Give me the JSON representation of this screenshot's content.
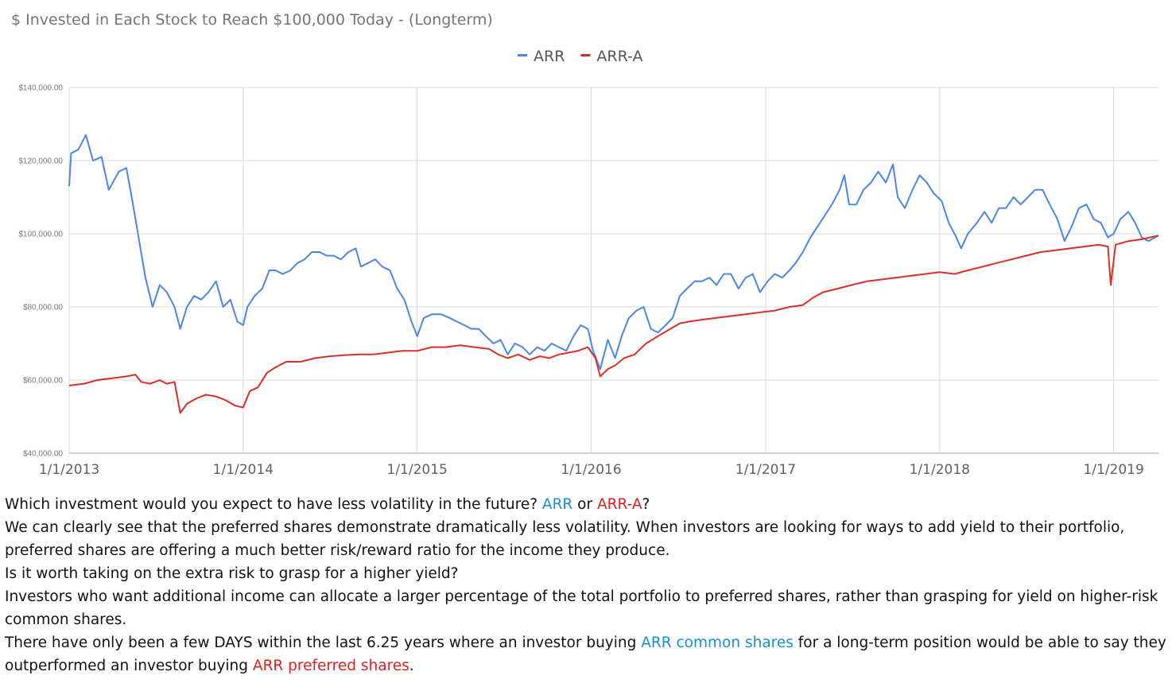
{
  "chart_data": {
    "type": "line",
    "title": "$ Invested in Each Stock to Reach $100,000 Today - (Longterm)",
    "xlabel": "",
    "ylabel": "",
    "ylim": [
      40000,
      140000
    ],
    "xlim": [
      "2013-01-01",
      "2019-04-05"
    ],
    "y_ticks": [
      "$140,000.00",
      "$120,000.00",
      "$100,000.00",
      "$80,000.00",
      "$60,000.00",
      "$40,000.00"
    ],
    "y_tick_values": [
      140000,
      120000,
      100000,
      80000,
      60000,
      40000
    ],
    "x_ticks": [
      "1/1/2013",
      "1/1/2014",
      "1/1/2015",
      "1/1/2016",
      "1/1/2017",
      "1/1/2018",
      "1/1/2019"
    ],
    "x_tick_dates": [
      "2013-01-01",
      "2014-01-01",
      "2015-01-01",
      "2016-01-01",
      "2017-01-01",
      "2018-01-01",
      "2019-01-01"
    ],
    "grid": true,
    "legend_position": "top",
    "series": [
      {
        "name": "ARR",
        "color": "#4a86e8",
        "points": [
          [
            "2013-01-01",
            113000
          ],
          [
            "2013-01-05",
            122000
          ],
          [
            "2013-01-20",
            123000
          ],
          [
            "2013-02-05",
            127000
          ],
          [
            "2013-02-20",
            120000
          ],
          [
            "2013-03-10",
            121000
          ],
          [
            "2013-03-25",
            112000
          ],
          [
            "2013-04-15",
            117000
          ],
          [
            "2013-05-01",
            118000
          ],
          [
            "2013-05-15",
            108000
          ],
          [
            "2013-05-28",
            98000
          ],
          [
            "2013-06-10",
            88000
          ],
          [
            "2013-06-25",
            80000
          ],
          [
            "2013-07-10",
            86000
          ],
          [
            "2013-07-25",
            84000
          ],
          [
            "2013-08-10",
            80000
          ],
          [
            "2013-08-22",
            74000
          ],
          [
            "2013-09-05",
            80000
          ],
          [
            "2013-09-20",
            83000
          ],
          [
            "2013-10-05",
            82000
          ],
          [
            "2013-10-20",
            84000
          ],
          [
            "2013-11-05",
            87000
          ],
          [
            "2013-11-20",
            80000
          ],
          [
            "2013-12-05",
            82000
          ],
          [
            "2013-12-20",
            76000
          ],
          [
            "2014-01-01",
            75000
          ],
          [
            "2014-01-10",
            80000
          ],
          [
            "2014-01-25",
            83000
          ],
          [
            "2014-02-10",
            85000
          ],
          [
            "2014-02-25",
            90000
          ],
          [
            "2014-03-10",
            90000
          ],
          [
            "2014-03-25",
            89000
          ],
          [
            "2014-04-10",
            90000
          ],
          [
            "2014-04-25",
            92000
          ],
          [
            "2014-05-10",
            93000
          ],
          [
            "2014-05-25",
            95000
          ],
          [
            "2014-06-10",
            95000
          ],
          [
            "2014-06-25",
            94000
          ],
          [
            "2014-07-10",
            94000
          ],
          [
            "2014-07-25",
            93000
          ],
          [
            "2014-08-10",
            95000
          ],
          [
            "2014-08-25",
            96000
          ],
          [
            "2014-09-05",
            91000
          ],
          [
            "2014-09-20",
            92000
          ],
          [
            "2014-10-05",
            93000
          ],
          [
            "2014-10-20",
            91000
          ],
          [
            "2014-11-05",
            90000
          ],
          [
            "2014-11-20",
            85000
          ],
          [
            "2014-12-05",
            82000
          ],
          [
            "2014-12-20",
            76000
          ],
          [
            "2015-01-01",
            72000
          ],
          [
            "2015-01-15",
            77000
          ],
          [
            "2015-02-01",
            78000
          ],
          [
            "2015-02-20",
            78000
          ],
          [
            "2015-03-10",
            77000
          ],
          [
            "2015-03-25",
            76000
          ],
          [
            "2015-04-10",
            75000
          ],
          [
            "2015-04-25",
            74000
          ],
          [
            "2015-05-10",
            74000
          ],
          [
            "2015-05-25",
            72000
          ],
          [
            "2015-06-10",
            70000
          ],
          [
            "2015-06-25",
            71000
          ],
          [
            "2015-07-10",
            67000
          ],
          [
            "2015-07-25",
            70000
          ],
          [
            "2015-08-10",
            69000
          ],
          [
            "2015-08-25",
            67000
          ],
          [
            "2015-09-10",
            69000
          ],
          [
            "2015-09-25",
            68000
          ],
          [
            "2015-10-10",
            70000
          ],
          [
            "2015-10-25",
            69000
          ],
          [
            "2015-11-10",
            68000
          ],
          [
            "2015-11-25",
            72000
          ],
          [
            "2015-12-10",
            75000
          ],
          [
            "2015-12-25",
            74000
          ],
          [
            "2016-01-05",
            68000
          ],
          [
            "2016-01-20",
            63000
          ],
          [
            "2016-02-05",
            71000
          ],
          [
            "2016-02-20",
            66000
          ],
          [
            "2016-03-05",
            72000
          ],
          [
            "2016-03-20",
            77000
          ],
          [
            "2016-04-05",
            79000
          ],
          [
            "2016-04-20",
            80000
          ],
          [
            "2016-05-05",
            74000
          ],
          [
            "2016-05-20",
            73000
          ],
          [
            "2016-06-05",
            75000
          ],
          [
            "2016-06-20",
            77000
          ],
          [
            "2016-07-05",
            83000
          ],
          [
            "2016-07-20",
            85000
          ],
          [
            "2016-08-05",
            87000
          ],
          [
            "2016-08-20",
            87000
          ],
          [
            "2016-09-05",
            88000
          ],
          [
            "2016-09-20",
            86000
          ],
          [
            "2016-10-05",
            89000
          ],
          [
            "2016-10-20",
            89000
          ],
          [
            "2016-11-05",
            85000
          ],
          [
            "2016-11-20",
            88000
          ],
          [
            "2016-12-05",
            89000
          ],
          [
            "2016-12-20",
            84000
          ],
          [
            "2017-01-05",
            87000
          ],
          [
            "2017-01-20",
            89000
          ],
          [
            "2017-02-05",
            88000
          ],
          [
            "2017-02-20",
            90000
          ],
          [
            "2017-03-05",
            92000
          ],
          [
            "2017-03-20",
            95000
          ],
          [
            "2017-04-05",
            99000
          ],
          [
            "2017-04-20",
            102000
          ],
          [
            "2017-05-05",
            105000
          ],
          [
            "2017-05-20",
            108000
          ],
          [
            "2017-06-05",
            112000
          ],
          [
            "2017-06-15",
            116000
          ],
          [
            "2017-06-25",
            108000
          ],
          [
            "2017-07-10",
            108000
          ],
          [
            "2017-07-25",
            112000
          ],
          [
            "2017-08-10",
            114000
          ],
          [
            "2017-08-25",
            117000
          ],
          [
            "2017-09-10",
            114000
          ],
          [
            "2017-09-25",
            119000
          ],
          [
            "2017-10-05",
            110000
          ],
          [
            "2017-10-20",
            107000
          ],
          [
            "2017-11-05",
            112000
          ],
          [
            "2017-11-20",
            116000
          ],
          [
            "2017-12-05",
            114000
          ],
          [
            "2017-12-20",
            111000
          ],
          [
            "2018-01-05",
            109000
          ],
          [
            "2018-01-20",
            103000
          ],
          [
            "2018-02-05",
            99000
          ],
          [
            "2018-02-15",
            96000
          ],
          [
            "2018-03-01",
            100000
          ],
          [
            "2018-03-20",
            103000
          ],
          [
            "2018-04-05",
            106000
          ],
          [
            "2018-04-20",
            103000
          ],
          [
            "2018-05-05",
            107000
          ],
          [
            "2018-05-20",
            107000
          ],
          [
            "2018-06-05",
            110000
          ],
          [
            "2018-06-20",
            108000
          ],
          [
            "2018-07-05",
            110000
          ],
          [
            "2018-07-20",
            112000
          ],
          [
            "2018-08-05",
            112000
          ],
          [
            "2018-08-20",
            108000
          ],
          [
            "2018-09-05",
            104000
          ],
          [
            "2018-09-20",
            98000
          ],
          [
            "2018-10-05",
            102000
          ],
          [
            "2018-10-20",
            107000
          ],
          [
            "2018-11-05",
            108000
          ],
          [
            "2018-11-20",
            104000
          ],
          [
            "2018-12-05",
            103000
          ],
          [
            "2018-12-20",
            99000
          ],
          [
            "2019-01-01",
            100000
          ],
          [
            "2019-01-15",
            104000
          ],
          [
            "2019-02-01",
            106000
          ],
          [
            "2019-02-15",
            103000
          ],
          [
            "2019-03-01",
            99000
          ],
          [
            "2019-03-15",
            98000
          ],
          [
            "2019-04-05",
            99500
          ]
        ]
      },
      {
        "name": "ARR-A",
        "color": "#d93025",
        "points": [
          [
            "2013-01-01",
            58500
          ],
          [
            "2013-02-01",
            59000
          ],
          [
            "2013-03-01",
            60000
          ],
          [
            "2013-04-01",
            60500
          ],
          [
            "2013-05-01",
            61000
          ],
          [
            "2013-05-20",
            61500
          ],
          [
            "2013-06-01",
            59500
          ],
          [
            "2013-06-20",
            59000
          ],
          [
            "2013-07-10",
            60000
          ],
          [
            "2013-07-25",
            59000
          ],
          [
            "2013-08-10",
            59500
          ],
          [
            "2013-08-22",
            51000
          ],
          [
            "2013-09-05",
            53500
          ],
          [
            "2013-09-25",
            55000
          ],
          [
            "2013-10-15",
            56000
          ],
          [
            "2013-11-05",
            55500
          ],
          [
            "2013-11-25",
            54500
          ],
          [
            "2013-12-15",
            53000
          ],
          [
            "2014-01-01",
            52500
          ],
          [
            "2014-01-15",
            57000
          ],
          [
            "2014-02-01",
            58000
          ],
          [
            "2014-02-20",
            62000
          ],
          [
            "2014-03-10",
            63500
          ],
          [
            "2014-04-01",
            65000
          ],
          [
            "2014-05-01",
            65000
          ],
          [
            "2014-06-01",
            66000
          ],
          [
            "2014-07-01",
            66500
          ],
          [
            "2014-08-01",
            66800
          ],
          [
            "2014-09-01",
            67000
          ],
          [
            "2014-10-01",
            67000
          ],
          [
            "2014-11-01",
            67500
          ],
          [
            "2014-12-01",
            68000
          ],
          [
            "2015-01-01",
            68000
          ],
          [
            "2015-02-01",
            69000
          ],
          [
            "2015-03-01",
            69000
          ],
          [
            "2015-04-01",
            69500
          ],
          [
            "2015-05-01",
            69000
          ],
          [
            "2015-06-01",
            68500
          ],
          [
            "2015-06-20",
            67000
          ],
          [
            "2015-07-10",
            66000
          ],
          [
            "2015-08-01",
            67000
          ],
          [
            "2015-08-25",
            65500
          ],
          [
            "2015-09-15",
            66500
          ],
          [
            "2015-10-05",
            66000
          ],
          [
            "2015-10-25",
            67000
          ],
          [
            "2015-11-15",
            67500
          ],
          [
            "2015-12-05",
            68000
          ],
          [
            "2015-12-25",
            69000
          ],
          [
            "2016-01-10",
            66000
          ],
          [
            "2016-01-20",
            61000
          ],
          [
            "2016-02-05",
            63000
          ],
          [
            "2016-02-20",
            64000
          ],
          [
            "2016-03-10",
            66000
          ],
          [
            "2016-04-01",
            67000
          ],
          [
            "2016-04-25",
            70000
          ],
          [
            "2016-05-20",
            72000
          ],
          [
            "2016-06-15",
            74000
          ],
          [
            "2016-07-05",
            75500
          ],
          [
            "2016-07-25",
            76000
          ],
          [
            "2016-08-20",
            76500
          ],
          [
            "2016-09-20",
            77000
          ],
          [
            "2016-10-20",
            77500
          ],
          [
            "2016-11-20",
            78000
          ],
          [
            "2016-12-20",
            78500
          ],
          [
            "2017-01-20",
            79000
          ],
          [
            "2017-02-20",
            80000
          ],
          [
            "2017-03-20",
            80500
          ],
          [
            "2017-04-10",
            82500
          ],
          [
            "2017-05-01",
            84000
          ],
          [
            "2017-06-01",
            85000
          ],
          [
            "2017-07-01",
            86000
          ],
          [
            "2017-08-01",
            87000
          ],
          [
            "2017-09-01",
            87500
          ],
          [
            "2017-10-01",
            88000
          ],
          [
            "2017-11-01",
            88500
          ],
          [
            "2017-12-01",
            89000
          ],
          [
            "2018-01-01",
            89500
          ],
          [
            "2018-02-01",
            89000
          ],
          [
            "2018-03-01",
            90000
          ],
          [
            "2018-04-01",
            91000
          ],
          [
            "2018-05-01",
            92000
          ],
          [
            "2018-06-01",
            93000
          ],
          [
            "2018-07-01",
            94000
          ],
          [
            "2018-08-01",
            95000
          ],
          [
            "2018-09-01",
            95500
          ],
          [
            "2018-10-01",
            96000
          ],
          [
            "2018-11-01",
            96500
          ],
          [
            "2018-12-01",
            97000
          ],
          [
            "2018-12-20",
            96500
          ],
          [
            "2018-12-26",
            86000
          ],
          [
            "2019-01-05",
            97000
          ],
          [
            "2019-02-01",
            98000
          ],
          [
            "2019-03-01",
            98500
          ],
          [
            "2019-04-05",
            99500
          ]
        ]
      }
    ]
  },
  "notes": {
    "line1_pre": "Which investment would you expect to have less volatility in the future? ",
    "line1_arr": "ARR",
    "line1_or": " or ",
    "line1_arra": "ARR-A",
    "line1_end": "?",
    "para2": "We can clearly see that the preferred shares demonstrate dramatically less volatility. When investors are looking for ways to add yield to their portfolio, preferred shares are offering a much better risk/reward ratio for the income they produce.",
    "para3": "Is it worth taking on the extra risk to grasp for a higher yield?",
    "para4": "Investors who want additional income can allocate a larger percentage of the total portfolio to preferred shares, rather than grasping for yield on higher-risk common shares.",
    "para5_pre": "There have only been a few DAYS within the last 6.25 years where an investor buying ",
    "para5_common": "ARR common shares",
    "para5_mid": " for a long-term position would be able to say they outperformed an investor buying ",
    "para5_pref": "ARR preferred shares",
    "para5_end": "."
  }
}
